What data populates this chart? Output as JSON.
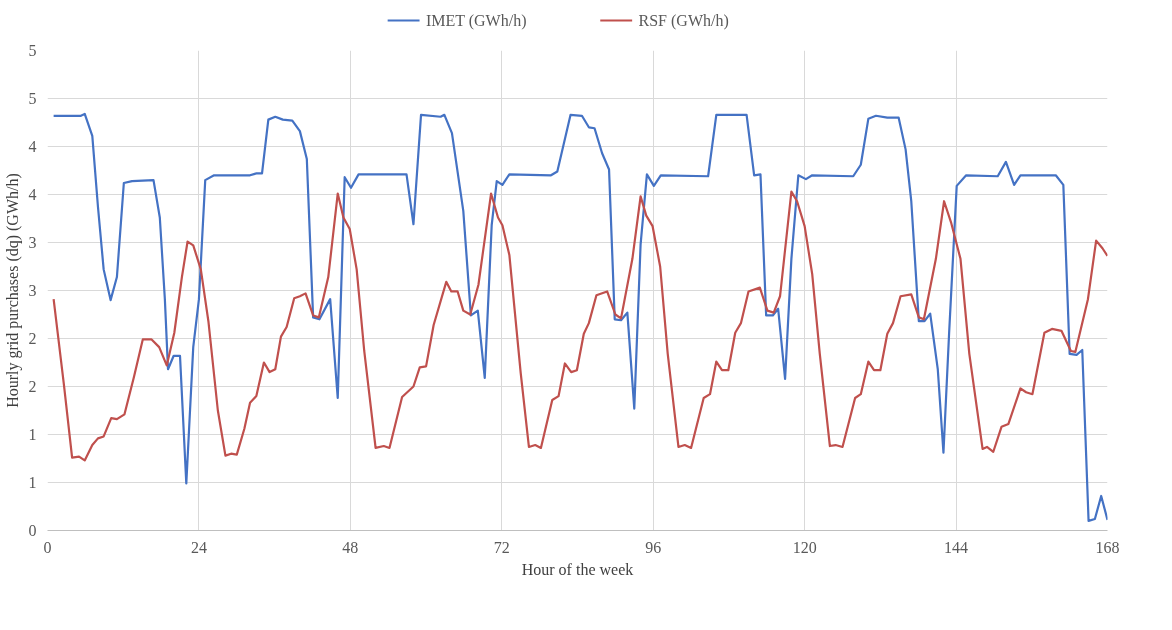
{
  "chart_data": {
    "type": "line",
    "xlabel": "Hour of the week",
    "ylabel": "Hourly grid purchases (dq) (GWh/h)",
    "xlim": [
      0,
      168
    ],
    "xticks": [
      0,
      24,
      48,
      72,
      96,
      120,
      144,
      168
    ],
    "ylim": [
      0,
      5
    ],
    "yticks": [
      0,
      {
        "value": 0.5,
        "label": "1"
      },
      1,
      {
        "value": 1.5,
        "label": "2"
      },
      2,
      {
        "value": 2.5,
        "label": "3"
      },
      3,
      {
        "value": 3.5,
        "label": "4"
      },
      4,
      {
        "value": 4.5,
        "label": "5"
      },
      5
    ],
    "grid": true,
    "legend": "top",
    "marker": "none",
    "line_style": "solid",
    "series": [
      {
        "name": "IMET (GWh/h)",
        "color": "#4472c4",
        "x": [
          0.97,
          5.3,
          5.9,
          7.1,
          8.0,
          8.9,
          10.0,
          11.0,
          12.1,
          13.4,
          16.8,
          17.8,
          18.6,
          19.1,
          20.0,
          21.0,
          22.0,
          23.1,
          24.0,
          25.0,
          26.4,
          32.1,
          33.1,
          34.0,
          35.0,
          36.1,
          37.3,
          38.8,
          40.0,
          41.1,
          42.1,
          43.1,
          44.8,
          46.0,
          47.1,
          48.1,
          49.3,
          56.9,
          58.0,
          59.2,
          62.3,
          62.9,
          64.1,
          65.9,
          67.1,
          68.2,
          69.3,
          70.4,
          71.2,
          72.1,
          73.2,
          79.8,
          80.8,
          82.9,
          84.7,
          85.8,
          86.7,
          87.9,
          89.0,
          89.9,
          90.9,
          91.9,
          93.0,
          94.0,
          95.0,
          96.1,
          97.2,
          104.7,
          106.0,
          110.8,
          112.0,
          113.0,
          113.9,
          114.95,
          115.8,
          116.9,
          117.9,
          119.0,
          120.2,
          121.2,
          127.7,
          128.9,
          130.1,
          131.3,
          133.1,
          134.9,
          136.0,
          136.9,
          138.1,
          139.0,
          139.9,
          141.1,
          142.0,
          142.9,
          144.1,
          145.6,
          150.6,
          151.9,
          153.2,
          154.2,
          159.8,
          161.0,
          162.0,
          163.1,
          164.0,
          165.0,
          166.0,
          167.0,
          168.0
        ],
        "values": [
          4.32,
          4.32,
          4.34,
          4.11,
          3.37,
          2.72,
          2.4,
          2.64,
          3.62,
          3.64,
          3.65,
          3.26,
          2.41,
          1.68,
          1.82,
          1.82,
          0.49,
          1.91,
          2.41,
          3.65,
          3.7,
          3.7,
          3.72,
          3.72,
          4.28,
          4.31,
          4.28,
          4.27,
          4.16,
          3.87,
          2.22,
          2.2,
          2.41,
          1.38,
          3.68,
          3.57,
          3.71,
          3.71,
          3.19,
          4.33,
          4.31,
          4.33,
          4.14,
          3.33,
          2.24,
          2.29,
          1.59,
          3.18,
          3.64,
          3.6,
          3.71,
          3.7,
          3.74,
          4.33,
          4.32,
          4.2,
          4.19,
          3.93,
          3.76,
          2.2,
          2.19,
          2.27,
          1.27,
          2.98,
          3.71,
          3.59,
          3.7,
          3.69,
          4.33,
          4.33,
          3.7,
          3.71,
          2.24,
          2.24,
          2.31,
          1.58,
          2.83,
          3.7,
          3.66,
          3.7,
          3.69,
          3.81,
          4.29,
          4.32,
          4.3,
          4.3,
          3.97,
          3.43,
          2.18,
          2.18,
          2.26,
          1.68,
          0.81,
          2.06,
          3.59,
          3.7,
          3.69,
          3.84,
          3.6,
          3.7,
          3.7,
          3.6,
          1.84,
          1.83,
          1.88,
          0.1,
          0.12,
          0.36,
          0.11
        ]
      },
      {
        "name": "RSF (GWh/h)",
        "color": "#c0504d",
        "x": [
          0.97,
          2.6,
          3.9,
          5.0,
          5.9,
          7.1,
          8.0,
          8.9,
          10.1,
          11.0,
          12.2,
          13.7,
          15.1,
          16.5,
          17.7,
          18.9,
          20.1,
          21.3,
          22.2,
          23.1,
          24.3,
          25.5,
          27.0,
          28.2,
          29.1,
          30.0,
          31.2,
          32.1,
          33.1,
          34.3,
          35.2,
          36.1,
          37.0,
          37.9,
          39.1,
          40.0,
          40.9,
          42.1,
          43.0,
          44.5,
          46.0,
          46.9,
          47.9,
          49.0,
          50.2,
          52.0,
          53.3,
          54.2,
          56.2,
          58.0,
          59.0,
          60.0,
          61.2,
          63.2,
          64.0,
          65.0,
          65.9,
          67.0,
          68.3,
          70.3,
          71.4,
          72.1,
          73.2,
          75.0,
          76.3,
          77.3,
          78.2,
          80.0,
          81.0,
          82.0,
          83.0,
          83.9,
          85.0,
          85.8,
          87.0,
          88.7,
          90.0,
          90.9,
          92.7,
          94.0,
          94.9,
          95.9,
          97.1,
          98.3,
          100.0,
          101.0,
          102.0,
          104.0,
          105.0,
          106.0,
          106.9,
          107.9,
          109.0,
          109.9,
          111.1,
          112.9,
          114.1,
          115.1,
          116.1,
          117.9,
          118.8,
          120.0,
          121.2,
          122.4,
          124.0,
          124.9,
          126.0,
          128.0,
          128.9,
          130.1,
          131.0,
          132.0,
          133.1,
          134.0,
          135.2,
          136.9,
          138.1,
          138.9,
          140.8,
          142.1,
          143.2,
          144.7,
          146.1,
          148.2,
          148.9,
          149.9,
          151.2,
          152.3,
          154.2,
          155.1,
          156.1,
          158.0,
          159.2,
          160.7,
          162.2,
          162.9,
          164.9,
          166.2,
          167.2,
          168.0
        ],
        "values": [
          2.41,
          1.52,
          0.76,
          0.77,
          0.73,
          0.89,
          0.96,
          0.98,
          1.17,
          1.16,
          1.21,
          1.6,
          1.99,
          1.99,
          1.91,
          1.72,
          2.06,
          2.64,
          3.01,
          2.97,
          2.72,
          2.18,
          1.25,
          0.78,
          0.8,
          0.79,
          1.06,
          1.33,
          1.4,
          1.75,
          1.65,
          1.68,
          2.02,
          2.12,
          2.42,
          2.44,
          2.47,
          2.24,
          2.22,
          2.64,
          3.51,
          3.26,
          3.14,
          2.72,
          1.87,
          0.86,
          0.88,
          0.86,
          1.39,
          1.5,
          1.7,
          1.71,
          2.14,
          2.59,
          2.49,
          2.49,
          2.29,
          2.25,
          2.56,
          3.51,
          3.26,
          3.18,
          2.87,
          1.64,
          0.87,
          0.89,
          0.86,
          1.36,
          1.4,
          1.74,
          1.65,
          1.67,
          2.05,
          2.16,
          2.45,
          2.49,
          2.25,
          2.21,
          2.83,
          3.48,
          3.28,
          3.17,
          2.75,
          1.84,
          0.87,
          0.89,
          0.86,
          1.38,
          1.42,
          1.76,
          1.67,
          1.67,
          2.06,
          2.16,
          2.49,
          2.53,
          2.29,
          2.27,
          2.44,
          3.53,
          3.43,
          3.17,
          2.67,
          1.84,
          0.88,
          0.89,
          0.87,
          1.38,
          1.42,
          1.76,
          1.67,
          1.67,
          2.05,
          2.16,
          2.44,
          2.46,
          2.22,
          2.2,
          2.83,
          3.43,
          3.21,
          2.83,
          1.84,
          0.85,
          0.87,
          0.82,
          1.08,
          1.11,
          1.48,
          1.44,
          1.42,
          2.06,
          2.1,
          2.08,
          1.87,
          1.86,
          2.41,
          3.02,
          2.94,
          2.86
        ]
      }
    ]
  }
}
